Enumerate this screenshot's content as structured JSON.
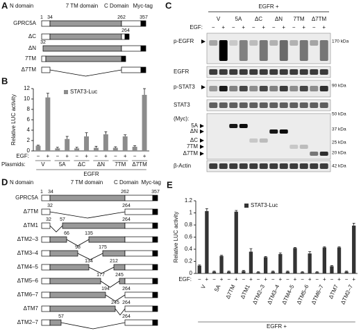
{
  "panel_a": {
    "label": "A",
    "header": [
      "N domain",
      "7 TM domain",
      "C Domain",
      "Myc-tag"
    ],
    "rows": [
      {
        "name": "GPRC5A",
        "numbers": [
          "1",
          "34",
          "262",
          "357"
        ]
      },
      {
        "name": "ΔC",
        "numbers": [
          "264"
        ]
      },
      {
        "name": "ΔN",
        "numbers": [
          "32"
        ]
      },
      {
        "name": "7TM"
      },
      {
        "name": "Δ7TM"
      }
    ]
  },
  "panel_c": {
    "label": "C",
    "title": "EGFR +",
    "groups": [
      "V",
      "5A",
      "ΔC",
      "ΔN",
      "7TM",
      "Δ7TM"
    ],
    "treatment_label": "EGF:",
    "treatments": [
      "−",
      "+",
      "−",
      "+",
      "−",
      "+",
      "−",
      "+",
      "−",
      "+",
      "−",
      "+"
    ],
    "rows": [
      {
        "name": "p-EGFR",
        "markers": [
          "170 kDa"
        ]
      },
      {
        "name": "EGFR"
      },
      {
        "name": "p-STAT3",
        "markers": [
          "90 kDa"
        ]
      },
      {
        "name": "STAT3"
      },
      {
        "name": "(Myc):",
        "markers": [
          "50 kDa",
          "37 kDa",
          "25 kDa",
          "20 kDa"
        ],
        "bands": [
          "5A",
          "ΔN",
          "ΔC",
          "7TM",
          "Δ7TM"
        ]
      },
      {
        "name": "β-Actin",
        "markers": [
          "42 kDa"
        ]
      }
    ]
  },
  "panel_d": {
    "label": "D",
    "header": [
      "N domain",
      "7 TM domain",
      "C Domain",
      "Myc-tag"
    ],
    "rows": [
      {
        "name": "GPRC5A",
        "numbers": [
          "1",
          "34",
          "262",
          "357"
        ]
      },
      {
        "name": "Δ7TM",
        "numbers": [
          "32",
          "264"
        ]
      },
      {
        "name": "ΔTM1",
        "numbers": [
          "32",
          "57",
          "264"
        ]
      },
      {
        "name": "ΔTM2–3",
        "numbers": [
          "66",
          "135"
        ]
      },
      {
        "name": "ΔTM3–4",
        "numbers": [
          "98",
          "175"
        ]
      },
      {
        "name": "ΔTM4–5",
        "numbers": [
          "134",
          "212"
        ]
      },
      {
        "name": "ΔTM5–6",
        "numbers": [
          "177",
          "245"
        ]
      },
      {
        "name": "ΔTM6–7",
        "numbers": [
          "194",
          "264"
        ]
      },
      {
        "name": "ΔTM7",
        "numbers": [
          "245",
          "264"
        ]
      },
      {
        "name": "ΔTM2–7",
        "numbers": [
          "57",
          "264"
        ]
      }
    ]
  },
  "chart_data": [
    {
      "type": "bar",
      "label": "B",
      "ylabel": "Relative LUC activity",
      "category_label": "EGF:",
      "categories": [
        "−",
        "+",
        "−",
        "+",
        "−",
        "+",
        "−",
        "+",
        "−",
        "+",
        "−",
        "+"
      ],
      "groups": [
        "V",
        "5A",
        "ΔC",
        "ΔN",
        "7TM",
        "Δ7TM"
      ],
      "group_label": "Plasmids:",
      "footer": "EGFR",
      "series": [
        {
          "name": "STAT3-Luc",
          "color": "#8c8c8c",
          "values": [
            1.0,
            10.3,
            0.5,
            2.3,
            0.5,
            2.8,
            0.6,
            3.2,
            0.6,
            2.8,
            0.8,
            10.8
          ],
          "errors": [
            0.1,
            0.8,
            0.2,
            0.5,
            0.2,
            0.7,
            0.3,
            0.5,
            0.2,
            0.3,
            0.2,
            1.2
          ]
        }
      ],
      "ylim": [
        0,
        12
      ],
      "yticks": [
        0,
        2,
        4,
        6,
        8,
        10,
        12
      ]
    },
    {
      "type": "bar",
      "label": "E",
      "ylabel": "Relative LUC activity",
      "category_label": "EGF:",
      "categories": [
        "−",
        "+",
        "−",
        "+",
        "−",
        "+",
        "−",
        "+",
        "−",
        "+",
        "−",
        "+",
        "−",
        "+",
        "−",
        "+",
        "−",
        "+",
        "−",
        "+",
        "−",
        "+"
      ],
      "groups": [
        "V",
        "5A",
        "Δ7TM",
        "ΔTM1",
        "ΔTM2–3",
        "ΔTM3–4",
        "ΔTM4–5",
        "ΔTM5–6",
        "ΔTM6–7",
        "ΔTM7",
        "ΔTM2–7"
      ],
      "footer": "EGFR +",
      "series": [
        {
          "name": "STAT3-Luc",
          "color": "#333333",
          "values": [
            0.13,
            1.03,
            0.03,
            0.29,
            0.03,
            1.02,
            0.04,
            0.36,
            0.02,
            0.27,
            0.03,
            0.32,
            0.03,
            0.42,
            0.02,
            0.33,
            0.02,
            0.43,
            0.12,
            0.43,
            0.03,
            0.79
          ],
          "errors": [
            0.01,
            0.04,
            0.01,
            0.01,
            0.01,
            0.02,
            0.01,
            0.05,
            0.01,
            0.01,
            0.01,
            0.02,
            0.01,
            0.01,
            0.01,
            0.03,
            0.01,
            0.01,
            0.01,
            0.01,
            0.01,
            0.04
          ]
        }
      ],
      "ylim": [
        0,
        1.2
      ],
      "yticks": [
        0,
        0.2,
        0.4,
        0.6,
        0.8,
        1,
        1.2
      ]
    }
  ]
}
